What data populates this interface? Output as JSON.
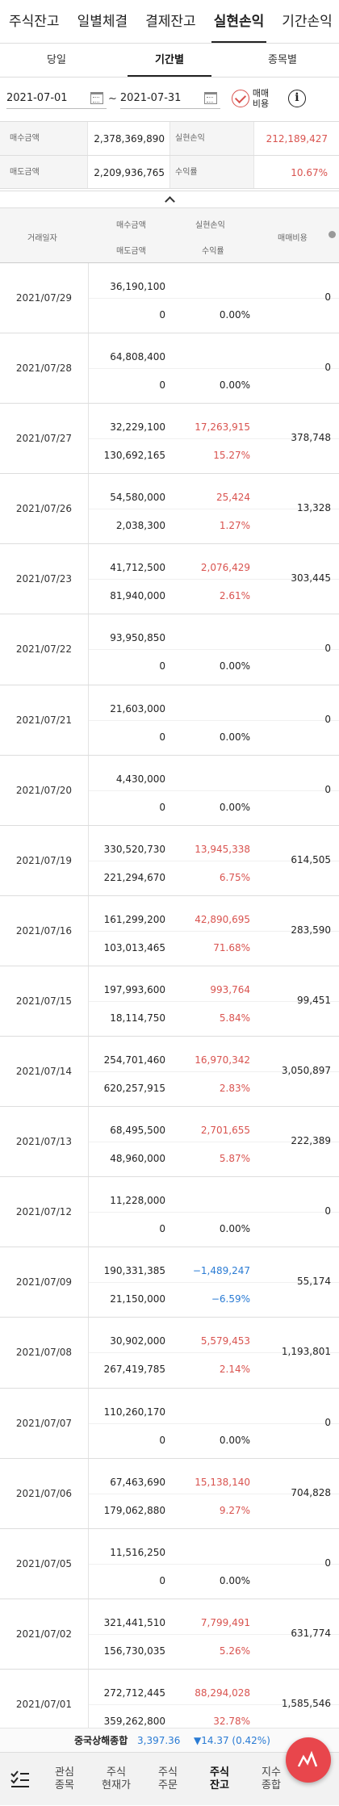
{
  "top_tabs": [
    "주식잔고",
    "일별체결",
    "결제잔고",
    "실현손익",
    "기간손익"
  ],
  "sub_tabs": [
    "당일",
    "기간별",
    "종목별"
  ],
  "date_range": {
    "start": "2021-07-01",
    "separator": "~",
    "end": "2021-07-31"
  },
  "trade_fee_toggle": {
    "line1": "매매",
    "line2": "비용"
  },
  "summary": {
    "buy_label": "매수금액",
    "buy_value": "2,378,369,890",
    "realized_label": "실현손익",
    "realized_value": "212,189,427",
    "sell_label": "매도금액",
    "sell_value": "2,209,936,765",
    "return_label": "수익률",
    "return_value": "10.67%"
  },
  "table_header": {
    "date": "거래일자",
    "buy": "매수금액",
    "sell": "매도금액",
    "pnl": "실현손익",
    "rate": "수익률",
    "fee": "매매비용"
  },
  "rows": [
    {
      "date": "2021/07/29",
      "buy": "36,190,100",
      "sell": "0",
      "pnl": "",
      "rate": "0.00%",
      "fee": "0"
    },
    {
      "date": "2021/07/28",
      "buy": "64,808,400",
      "sell": "0",
      "pnl": "",
      "rate": "0.00%",
      "fee": "0"
    },
    {
      "date": "2021/07/27",
      "buy": "32,229,100",
      "sell": "130,692,165",
      "pnl": "17,263,915",
      "rate": "15.27%",
      "fee": "378,748"
    },
    {
      "date": "2021/07/26",
      "buy": "54,580,000",
      "sell": "2,038,300",
      "pnl": "25,424",
      "rate": "1.27%",
      "fee": "13,328"
    },
    {
      "date": "2021/07/23",
      "buy": "41,712,500",
      "sell": "81,940,000",
      "pnl": "2,076,429",
      "rate": "2.61%",
      "fee": "303,445"
    },
    {
      "date": "2021/07/22",
      "buy": "93,950,850",
      "sell": "0",
      "pnl": "",
      "rate": "0.00%",
      "fee": "0"
    },
    {
      "date": "2021/07/21",
      "buy": "21,603,000",
      "sell": "0",
      "pnl": "",
      "rate": "0.00%",
      "fee": "0"
    },
    {
      "date": "2021/07/20",
      "buy": "4,430,000",
      "sell": "0",
      "pnl": "",
      "rate": "0.00%",
      "fee": "0"
    },
    {
      "date": "2021/07/19",
      "buy": "330,520,730",
      "sell": "221,294,670",
      "pnl": "13,945,338",
      "rate": "6.75%",
      "fee": "614,505"
    },
    {
      "date": "2021/07/16",
      "buy": "161,299,200",
      "sell": "103,013,465",
      "pnl": "42,890,695",
      "rate": "71.68%",
      "fee": "283,590"
    },
    {
      "date": "2021/07/15",
      "buy": "197,993,600",
      "sell": "18,114,750",
      "pnl": "993,764",
      "rate": "5.84%",
      "fee": "99,451"
    },
    {
      "date": "2021/07/14",
      "buy": "254,701,460",
      "sell": "620,257,915",
      "pnl": "16,970,342",
      "rate": "2.83%",
      "fee": "3,050,897"
    },
    {
      "date": "2021/07/13",
      "buy": "68,495,500",
      "sell": "48,960,000",
      "pnl": "2,701,655",
      "rate": "5.87%",
      "fee": "222,389"
    },
    {
      "date": "2021/07/12",
      "buy": "11,228,000",
      "sell": "0",
      "pnl": "",
      "rate": "0.00%",
      "fee": "0"
    },
    {
      "date": "2021/07/09",
      "buy": "190,331,385",
      "sell": "21,150,000",
      "pnl": "−1,489,247",
      "rate": "−6.59%",
      "fee": "55,174"
    },
    {
      "date": "2021/07/08",
      "buy": "30,902,000",
      "sell": "267,419,785",
      "pnl": "5,579,453",
      "rate": "2.14%",
      "fee": "1,193,801"
    },
    {
      "date": "2021/07/07",
      "buy": "110,260,170",
      "sell": "0",
      "pnl": "",
      "rate": "0.00%",
      "fee": "0"
    },
    {
      "date": "2021/07/06",
      "buy": "67,463,690",
      "sell": "179,062,880",
      "pnl": "15,138,140",
      "rate": "9.27%",
      "fee": "704,828"
    },
    {
      "date": "2021/07/05",
      "buy": "11,516,250",
      "sell": "0",
      "pnl": "",
      "rate": "0.00%",
      "fee": "0"
    },
    {
      "date": "2021/07/02",
      "buy": "321,441,510",
      "sell": "156,730,035",
      "pnl": "7,799,491",
      "rate": "5.26%",
      "fee": "631,774"
    },
    {
      "date": "2021/07/01",
      "buy": "272,712,445",
      "sell": "359,262,800",
      "pnl": "88,294,028",
      "rate": "32.78%",
      "fee": "1,585,546"
    }
  ],
  "ticker": {
    "name": "중국상해종합",
    "index": "3,397.36",
    "change": "▼14.37 (0.42%)"
  },
  "bottom_nav": [
    {
      "line1": "관심",
      "line2": "종목"
    },
    {
      "line1": "주식",
      "line2": "현재가"
    },
    {
      "line1": "주식",
      "line2": "주문"
    },
    {
      "line1": "주식",
      "line2": "잔고"
    },
    {
      "line1": "지수",
      "line2": "종합"
    }
  ],
  "colors": {
    "positive": "#d9534f",
    "negative": "#2a7bd4",
    "fab": "#e8464c"
  }
}
